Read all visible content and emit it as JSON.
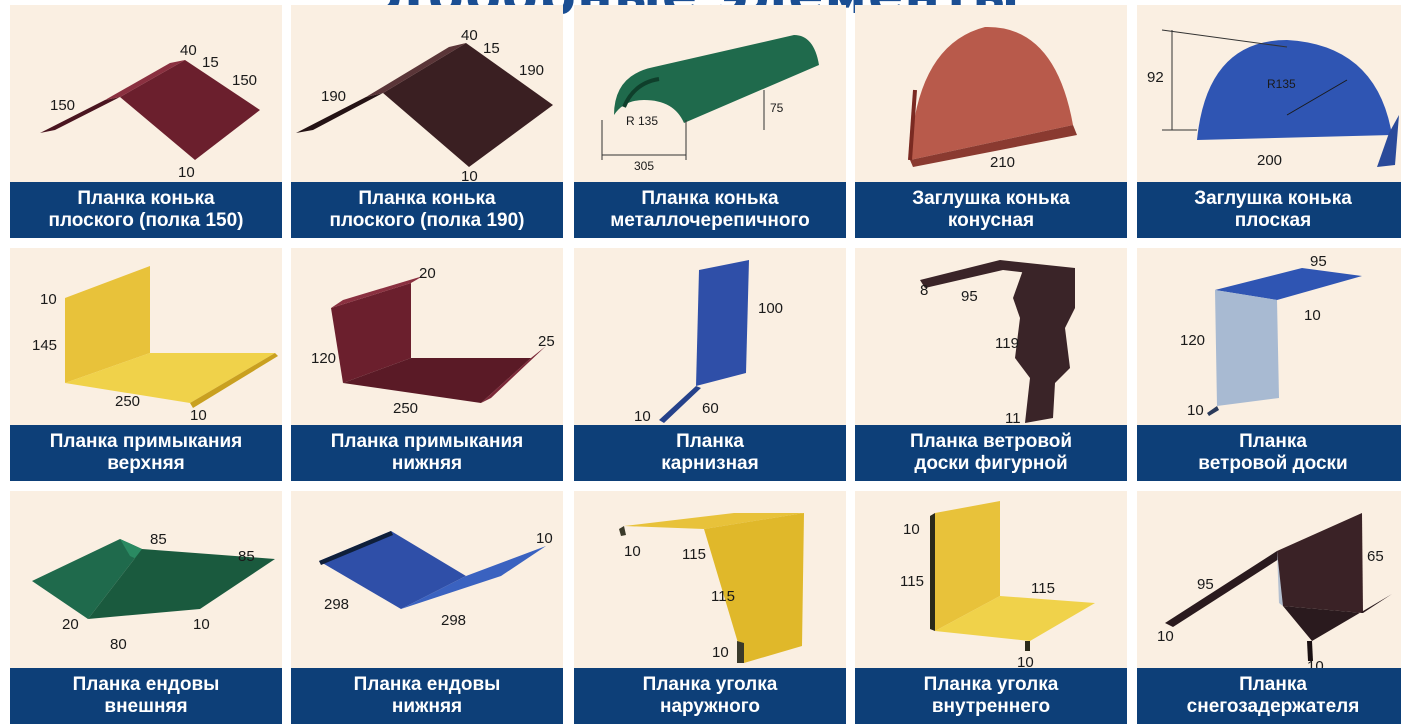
{
  "title": "Доборные элементы",
  "colors": {
    "label_bg": "#0d3f78",
    "cell_bg": "#faefe2",
    "title": "#1a4e93"
  },
  "items": [
    {
      "line1": "Планка конька",
      "line2": "плоского (полка 150)",
      "color": "#6b1f2d",
      "dims": [
        "40",
        "15",
        "150",
        "150",
        "10"
      ]
    },
    {
      "line1": "Планка конька",
      "line2": "плоского (полка 190)",
      "color": "#3a1f22",
      "dims": [
        "40",
        "15",
        "190",
        "190",
        "10"
      ]
    },
    {
      "line1": "Планка конька",
      "line2": "металлочерепичного",
      "color": "#1f6a4c",
      "dims": [
        "R 135",
        "75",
        "305"
      ]
    },
    {
      "line1": "Заглушка конька",
      "line2": "конусная",
      "color": "#b85a4b",
      "dims": [
        "210"
      ]
    },
    {
      "line1": "Заглушка конька",
      "line2": "плоская",
      "color": "#2f55b3",
      "dims": [
        "92",
        "R135",
        "200"
      ]
    },
    {
      "line1": "Планка примыкания",
      "line2": "верхняя",
      "color": "#e8c23a",
      "dims": [
        "10",
        "145",
        "250",
        "10"
      ]
    },
    {
      "line1": "Планка примыкания",
      "line2": "нижняя",
      "color": "#6b1f2d",
      "dims": [
        "20",
        "120",
        "25",
        "250"
      ]
    },
    {
      "line1": "Планка",
      "line2": "карнизная",
      "color": "#2f4fa8",
      "dims": [
        "100",
        "10",
        "60"
      ]
    },
    {
      "line1": "Планка ветровой",
      "line2": "доски фигурной",
      "color": "#3a2428",
      "dims": [
        "8",
        "95",
        "119",
        "11"
      ]
    },
    {
      "line1": "Планка",
      "line2": "ветровой доски",
      "color": "#2f55b3",
      "dims": [
        "95",
        "10",
        "120",
        "10"
      ]
    },
    {
      "line1": "Планка ендовы",
      "line2": "внешняя",
      "color": "#1f6a4c",
      "dims": [
        "85",
        "85",
        "20",
        "10",
        "80"
      ]
    },
    {
      "line1": "Планка ендовы",
      "line2": "нижняя",
      "color": "#2f4fa8",
      "dims": [
        "10",
        "298",
        "298"
      ]
    },
    {
      "line1": "Планка уголка",
      "line2": "наружного",
      "color": "#e8c23a",
      "dims": [
        "10",
        "115",
        "115",
        "10"
      ]
    },
    {
      "line1": "Планка уголка",
      "line2": "внутреннего",
      "color": "#e8c23a",
      "dims": [
        "10",
        "115",
        "115",
        "10"
      ]
    },
    {
      "line1": "Планка",
      "line2": "снегозадержателя",
      "color": "#2a1a1e",
      "dims": [
        "65",
        "95",
        "10",
        "10"
      ]
    }
  ]
}
